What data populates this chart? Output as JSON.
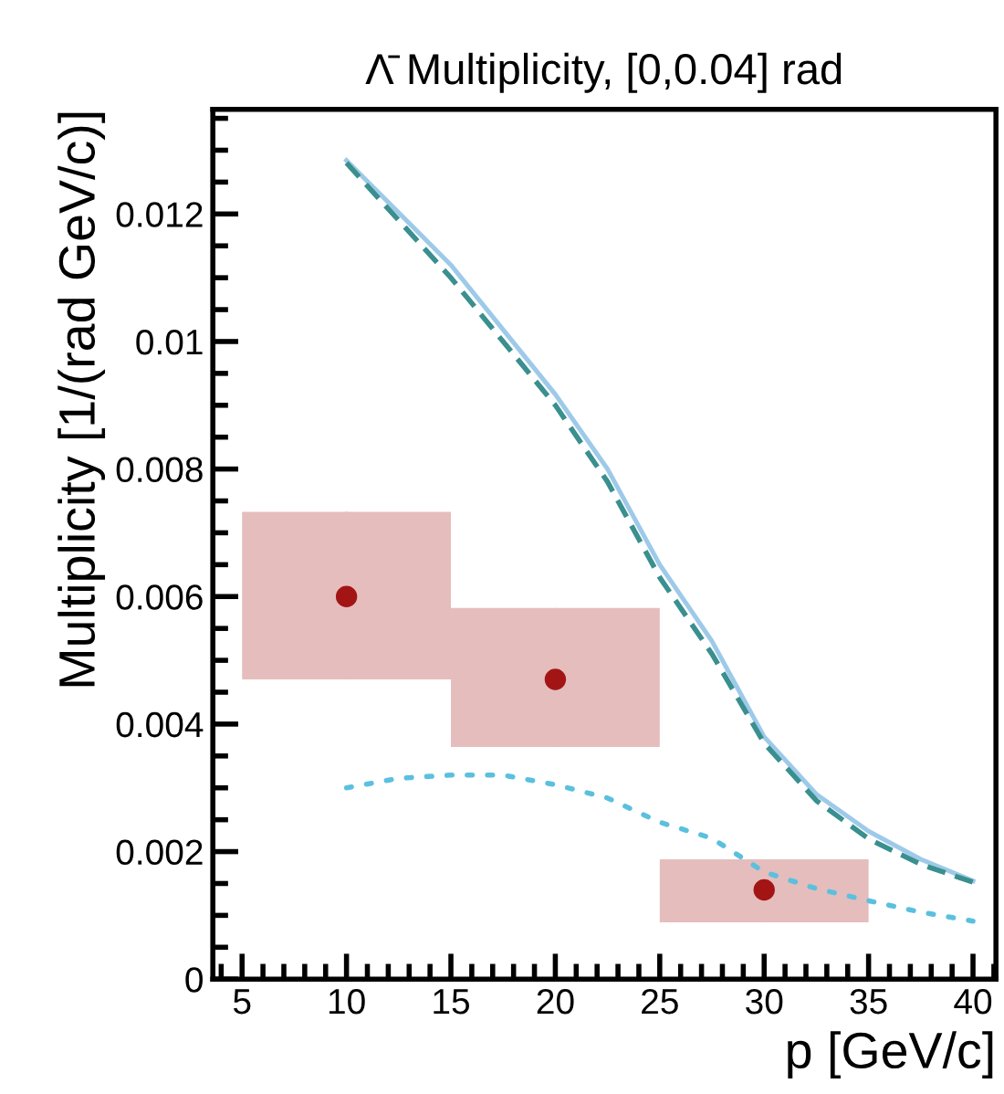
{
  "chart_data": {
    "type": "line",
    "title": "Λ̄ Multiplicity, [0,0.04] rad",
    "xlabel": "p [GeV/c]",
    "ylabel": "Multiplicity [1/(rad GeV/c)]",
    "xlim": [
      3.6,
      41.1
    ],
    "xticks": [
      5,
      10,
      15,
      20,
      25,
      30,
      35,
      40
    ],
    "ylim": [
      0,
      0.01364
    ],
    "yticks": [
      0,
      0.002,
      0.004,
      0.006,
      0.008,
      0.01,
      0.012
    ],
    "grid": false,
    "legend": false,
    "series": [
      {
        "type": "line",
        "line_style": "solid",
        "color": "#9ecae9",
        "x": [
          10,
          15,
          20,
          22.5,
          25,
          27.5,
          30,
          32.5,
          35,
          37.5,
          40
        ],
        "values": [
          0.01284,
          0.0112,
          0.00917,
          0.008,
          0.0065,
          0.0053,
          0.0038,
          0.0029,
          0.00232,
          0.00188,
          0.00154
        ]
      },
      {
        "type": "line",
        "line_style": "dashed",
        "color": "#3a8f8f",
        "x": [
          10,
          15,
          20,
          22.5,
          25,
          27.5,
          30,
          32.5,
          35,
          37.5,
          40
        ],
        "values": [
          0.0128,
          0.011,
          0.009,
          0.0078,
          0.0063,
          0.0051,
          0.0037,
          0.0028,
          0.0022,
          0.0018,
          0.00152
        ]
      },
      {
        "type": "line",
        "line_style": "dotted",
        "color": "#5bc0de",
        "x": [
          10,
          12.5,
          15,
          17.5,
          20,
          22.5,
          25,
          27.5,
          30,
          32.5,
          35,
          37.5,
          40
        ],
        "values": [
          0.003,
          0.00315,
          0.0032,
          0.0032,
          0.00305,
          0.00284,
          0.00246,
          0.00221,
          0.00168,
          0.00142,
          0.00123,
          0.00105,
          0.00091
        ]
      },
      {
        "type": "scatter",
        "marker": "circle",
        "color": "#a31515",
        "x": [
          10,
          20,
          30
        ],
        "values": [
          0.006,
          0.0047,
          0.0014
        ],
        "errors": [
          [
            0.0047,
            0.00733
          ],
          [
            0.00364,
            0.00582
          ],
          [
            0.00089,
            0.00188
          ]
        ],
        "xerrors": [
          [
            5,
            15
          ],
          [
            15,
            25
          ],
          [
            25,
            35
          ]
        ]
      }
    ]
  }
}
